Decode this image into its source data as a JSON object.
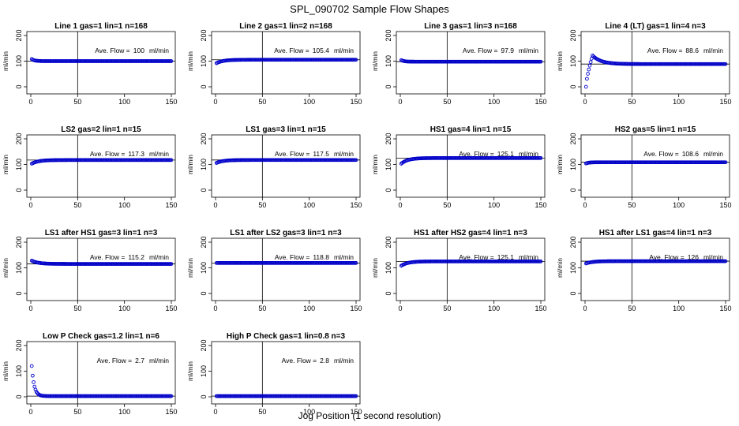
{
  "figure": {
    "title": "SPL_090702  Sample Flow Shapes",
    "xlabel": "Jog Position (1 second resolution)"
  },
  "chart_data": [
    {
      "type": "scatter",
      "title": "Line 1 gas=1 lin=1 n=168",
      "ylabel": "ml/min",
      "annotation_label": "Ave. Flow =",
      "annotation_value": "100",
      "annotation_unit": "ml/min",
      "ave_flow": 100,
      "xlim": [
        0,
        150
      ],
      "ylim": [
        0,
        200
      ],
      "xticks": [
        "0",
        "50",
        "100",
        "150"
      ],
      "yticks": [
        "0",
        "100",
        "200"
      ],
      "vline_x": 50,
      "series": [
        {
          "shape": "flat",
          "x_range": [
            1,
            150
          ],
          "start": 108,
          "level": 100
        }
      ]
    },
    {
      "type": "scatter",
      "title": "Line 2 gas=1 lin=2 n=168",
      "ylabel": "ml/min",
      "annotation_label": "Ave. Flow =",
      "annotation_value": "105.4",
      "annotation_unit": "ml/min",
      "ave_flow": 105.4,
      "xlim": [
        0,
        150
      ],
      "ylim": [
        0,
        200
      ],
      "xticks": [
        "0",
        "50",
        "100",
        "150"
      ],
      "yticks": [
        "0",
        "100",
        "200"
      ],
      "vline_x": 50,
      "series": [
        {
          "shape": "rise",
          "x_range": [
            1,
            150
          ],
          "start": 92,
          "level": 105.4
        }
      ]
    },
    {
      "type": "scatter",
      "title": "Line 3 gas=1 lin=3 n=168",
      "ylabel": "ml/min",
      "annotation_label": "Ave. Flow =",
      "annotation_value": "97.9",
      "annotation_unit": "ml/min",
      "ave_flow": 97.9,
      "xlim": [
        0,
        150
      ],
      "ylim": [
        0,
        200
      ],
      "xticks": [
        "0",
        "50",
        "100",
        "150"
      ],
      "yticks": [
        "0",
        "100",
        "200"
      ],
      "vline_x": 50,
      "series": [
        {
          "shape": "flat",
          "x_range": [
            1,
            150
          ],
          "start": 104,
          "level": 97.9
        }
      ]
    },
    {
      "type": "scatter",
      "title": "Line 4 (LT) gas=1 lin=4 n=3",
      "ylabel": "ml/min",
      "annotation_label": "Ave. Flow =",
      "annotation_value": "88.6",
      "annotation_unit": "ml/min",
      "ave_flow": 88.6,
      "xlim": [
        0,
        150
      ],
      "ylim": [
        0,
        200
      ],
      "xticks": [
        "0",
        "50",
        "100",
        "150"
      ],
      "yticks": [
        "0",
        "100",
        "200"
      ],
      "vline_x": 50,
      "series": [
        {
          "shape": "overshoot",
          "x_range": [
            1,
            150
          ],
          "start": 0,
          "peak": 122,
          "peak_x": 8,
          "level": 88.6
        }
      ]
    },
    {
      "type": "scatter",
      "title": "LS2 gas=2 lin=1 n=15",
      "ylabel": "ml/min",
      "annotation_label": "Ave. Flow =",
      "annotation_value": "117.3",
      "annotation_unit": "ml/min",
      "ave_flow": 117.3,
      "xlim": [
        0,
        150
      ],
      "ylim": [
        0,
        200
      ],
      "xticks": [
        "0",
        "50",
        "100",
        "150"
      ],
      "yticks": [
        "0",
        "100",
        "200"
      ],
      "vline_x": 50,
      "series": [
        {
          "shape": "rise",
          "x_range": [
            1,
            150
          ],
          "start": 103,
          "level": 117.3
        }
      ]
    },
    {
      "type": "scatter",
      "title": "LS1 gas=3 lin=1 n=15",
      "ylabel": "ml/min",
      "annotation_label": "Ave. Flow =",
      "annotation_value": "117.5",
      "annotation_unit": "ml/min",
      "ave_flow": 117.5,
      "xlim": [
        0,
        150
      ],
      "ylim": [
        0,
        200
      ],
      "xticks": [
        "0",
        "50",
        "100",
        "150"
      ],
      "yticks": [
        "0",
        "100",
        "200"
      ],
      "vline_x": 50,
      "series": [
        {
          "shape": "rise",
          "x_range": [
            1,
            150
          ],
          "start": 106,
          "level": 117.5
        }
      ]
    },
    {
      "type": "scatter",
      "title": "HS1 gas=4 lin=1 n=15",
      "ylabel": "ml/min",
      "annotation_label": "Ave. Flow =",
      "annotation_value": "125.1",
      "annotation_unit": "ml/min",
      "ave_flow": 125.1,
      "xlim": [
        0,
        150
      ],
      "ylim": [
        0,
        200
      ],
      "xticks": [
        "0",
        "50",
        "100",
        "150"
      ],
      "yticks": [
        "0",
        "100",
        "200"
      ],
      "vline_x": 50,
      "series": [
        {
          "shape": "rise",
          "x_range": [
            1,
            150
          ],
          "start": 103,
          "level": 125.1
        }
      ]
    },
    {
      "type": "scatter",
      "title": "HS2 gas=5 lin=1 n=15",
      "ylabel": "ml/min",
      "annotation_label": "Ave. Flow =",
      "annotation_value": "108.6",
      "annotation_unit": "ml/min",
      "ave_flow": 108.6,
      "xlim": [
        0,
        150
      ],
      "ylim": [
        0,
        200
      ],
      "xticks": [
        "0",
        "50",
        "100",
        "150"
      ],
      "yticks": [
        "0",
        "100",
        "200"
      ],
      "vline_x": 50,
      "series": [
        {
          "shape": "flat",
          "x_range": [
            1,
            150
          ],
          "start": 104,
          "level": 108.6
        }
      ]
    },
    {
      "type": "scatter",
      "title": "LS1 after HS1 gas=3 lin=1 n=3",
      "ylabel": "ml/min",
      "annotation_label": "Ave. Flow =",
      "annotation_value": "115.2",
      "annotation_unit": "ml/min",
      "ave_flow": 115.2,
      "xlim": [
        0,
        150
      ],
      "ylim": [
        0,
        200
      ],
      "xticks": [
        "0",
        "50",
        "100",
        "150"
      ],
      "yticks": [
        "0",
        "100",
        "200"
      ],
      "vline_x": 50,
      "series": [
        {
          "shape": "fall",
          "x_range": [
            1,
            150
          ],
          "start": 128,
          "level": 115.2
        }
      ]
    },
    {
      "type": "scatter",
      "title": "LS1 after LS2 gas=3 lin=1 n=3",
      "ylabel": "ml/min",
      "annotation_label": "Ave. Flow =",
      "annotation_value": "118.8",
      "annotation_unit": "ml/min",
      "ave_flow": 118.8,
      "xlim": [
        0,
        150
      ],
      "ylim": [
        0,
        200
      ],
      "xticks": [
        "0",
        "50",
        "100",
        "150"
      ],
      "yticks": [
        "0",
        "100",
        "200"
      ],
      "vline_x": 50,
      "series": [
        {
          "shape": "flat",
          "x_range": [
            1,
            150
          ],
          "start": 118.8,
          "level": 118.8
        }
      ]
    },
    {
      "type": "scatter",
      "title": "HS1 after HS2 gas=4 lin=1 n=3",
      "ylabel": "ml/min",
      "annotation_label": "Ave. Flow =",
      "annotation_value": "125.1",
      "annotation_unit": "ml/min",
      "ave_flow": 125.1,
      "xlim": [
        0,
        150
      ],
      "ylim": [
        0,
        200
      ],
      "xticks": [
        "0",
        "50",
        "100",
        "150"
      ],
      "yticks": [
        "0",
        "100",
        "200"
      ],
      "vline_x": 50,
      "series": [
        {
          "shape": "rise",
          "x_range": [
            1,
            150
          ],
          "start": 108,
          "level": 125.1
        }
      ]
    },
    {
      "type": "scatter",
      "title": "HS1 after LS1 gas=4 lin=1 n=3",
      "ylabel": "ml/min",
      "annotation_label": "Ave. Flow =",
      "annotation_value": "126",
      "annotation_unit": "ml/min",
      "ave_flow": 126,
      "xlim": [
        0,
        150
      ],
      "ylim": [
        0,
        200
      ],
      "xticks": [
        "0",
        "50",
        "100",
        "150"
      ],
      "yticks": [
        "0",
        "100",
        "200"
      ],
      "vline_x": 50,
      "series": [
        {
          "shape": "rise",
          "x_range": [
            1,
            150
          ],
          "start": 117,
          "level": 126
        }
      ]
    },
    {
      "type": "scatter",
      "title": "Low P Check gas=1.2 lin=1 n=6",
      "ylabel": "ml/min",
      "annotation_label": "Ave. Flow =",
      "annotation_value": "2.7",
      "annotation_unit": "ml/min",
      "ave_flow": 2.7,
      "xlim": [
        0,
        150
      ],
      "ylim": [
        0,
        200
      ],
      "xticks": [
        "0",
        "50",
        "100",
        "150"
      ],
      "yticks": [
        "0",
        "100",
        "200"
      ],
      "vline_x": 50,
      "series": [
        {
          "shape": "decay",
          "x_range": [
            1,
            150
          ],
          "start": 120,
          "level": 2.7
        }
      ]
    },
    {
      "type": "scatter",
      "title": "High P Check gas=1 lin=0.8 n=3",
      "ylabel": "ml/min",
      "annotation_label": "Ave. Flow =",
      "annotation_value": "2.8",
      "annotation_unit": "ml/min",
      "ave_flow": 2.8,
      "xlim": [
        0,
        150
      ],
      "ylim": [
        0,
        200
      ],
      "xticks": [
        "0",
        "50",
        "100",
        "150"
      ],
      "yticks": [
        "0",
        "100",
        "200"
      ],
      "vline_x": 50,
      "series": [
        {
          "shape": "flat",
          "x_range": [
            1,
            150
          ],
          "start": 2.8,
          "level": 2.8
        }
      ]
    }
  ],
  "style": {
    "point_color": "#0000cc",
    "line_color": "#000000",
    "axis_color": "#000000"
  }
}
